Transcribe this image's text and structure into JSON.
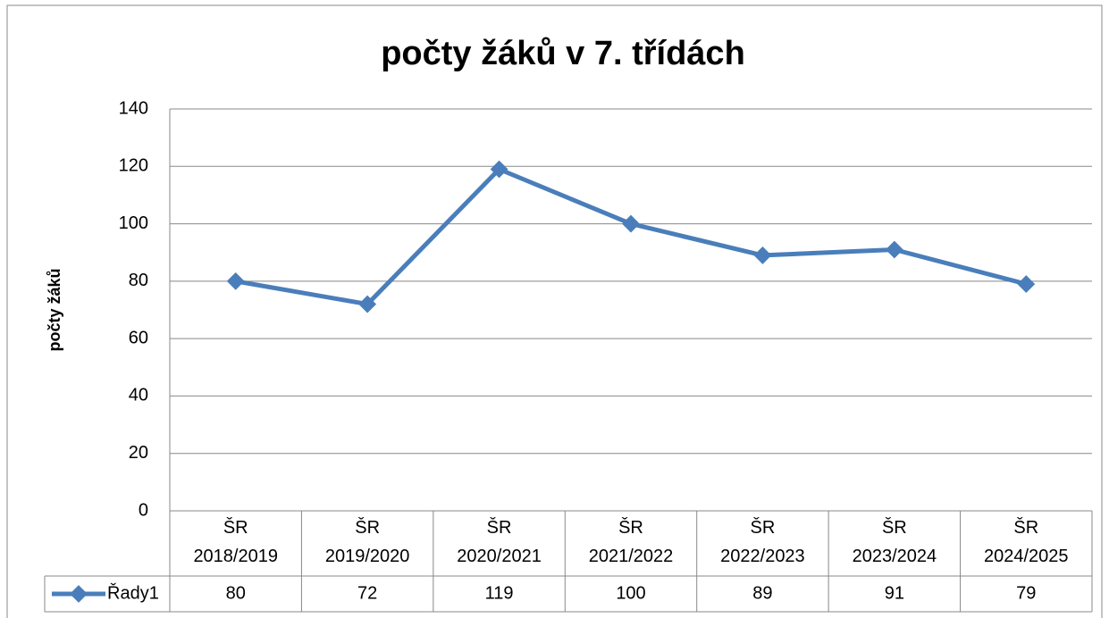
{
  "chart_data": {
    "type": "line",
    "title": "počty žáků v 7. třídách",
    "y_label": "počty žáků",
    "categories": [
      "ŠR 2018/2019",
      "ŠR 2019/2020",
      "ŠR 2020/2021",
      "ŠR 2021/2022",
      "ŠR 2022/2023",
      "ŠR 2023/2024",
      "ŠR 2024/2025"
    ],
    "series": [
      {
        "name": "Řady1",
        "color": "#4a7ebb",
        "values": [
          80,
          72,
          119,
          100,
          89,
          91,
          79
        ]
      }
    ],
    "ylim": [
      0,
      140
    ],
    "yticks": [
      0,
      20,
      40,
      60,
      80,
      100,
      120,
      140
    ],
    "grid": true,
    "data_table": true
  }
}
